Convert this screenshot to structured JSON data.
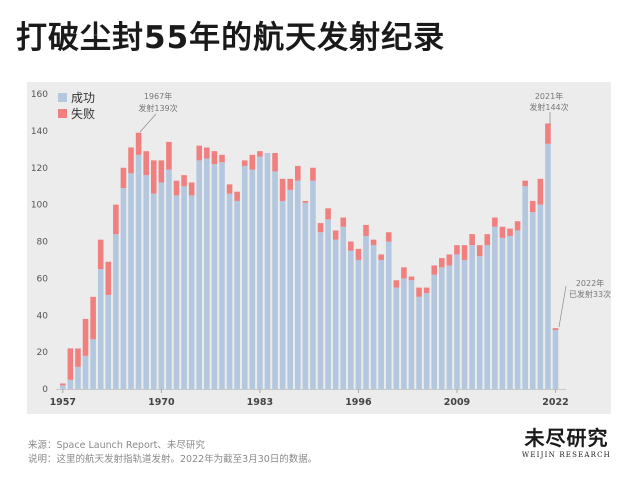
{
  "page": {
    "title": "打破尘封55年的航天发射纪录"
  },
  "footer": {
    "source": "来源：Space Launch Report、未尽研究",
    "note": "说明：这里的航天发射指轨道发射。2022年为截至3月30日的数据。"
  },
  "brand": {
    "name_cn": "未尽研究",
    "name_en": "WEIJIN RESEARCH"
  },
  "colors": {
    "success": "#b3c7df",
    "failure": "#f08080",
    "background": "#ececec"
  },
  "chart_data": {
    "type": "bar",
    "stacked": true,
    "categories": [
      1957,
      1958,
      1959,
      1960,
      1961,
      1962,
      1963,
      1964,
      1965,
      1966,
      1967,
      1968,
      1969,
      1970,
      1971,
      1972,
      1973,
      1974,
      1975,
      1976,
      1977,
      1978,
      1979,
      1980,
      1981,
      1982,
      1983,
      1984,
      1985,
      1986,
      1987,
      1988,
      1989,
      1990,
      1991,
      1992,
      1993,
      1994,
      1995,
      1996,
      1997,
      1998,
      1999,
      2000,
      2001,
      2002,
      2003,
      2004,
      2005,
      2006,
      2007,
      2008,
      2009,
      2010,
      2011,
      2012,
      2013,
      2014,
      2015,
      2016,
      2017,
      2018,
      2019,
      2020,
      2021,
      2022
    ],
    "x_tick_labels": [
      "1957",
      "1970",
      "1983",
      "1996",
      "2009",
      "2022"
    ],
    "series": [
      {
        "name": "成功",
        "color": "#b3c7df",
        "values": [
          2,
          5,
          12,
          18,
          27,
          65,
          51,
          84,
          109,
          117,
          127,
          116,
          106,
          112,
          119,
          105,
          110,
          105,
          124,
          125,
          122,
          123,
          106,
          102,
          121,
          119,
          126,
          128,
          118,
          102,
          108,
          113,
          101,
          113,
          85,
          92,
          81,
          88,
          75,
          70,
          83,
          78,
          70,
          80,
          55,
          60,
          59,
          50,
          52,
          62,
          66,
          67,
          73,
          70,
          78,
          72,
          78,
          88,
          82,
          83,
          86,
          110,
          96,
          100,
          133,
          32
        ]
      },
      {
        "name": "失败",
        "color": "#f08080",
        "values": [
          1,
          17,
          10,
          20,
          23,
          16,
          18,
          16,
          11,
          14,
          12,
          13,
          18,
          12,
          15,
          8,
          6,
          7,
          8,
          6,
          7,
          4,
          5,
          5,
          3,
          8,
          3,
          0,
          10,
          12,
          6,
          8,
          1,
          7,
          5,
          6,
          5,
          5,
          5,
          6,
          6,
          3,
          3,
          5,
          4,
          6,
          2,
          5,
          3,
          5,
          5,
          6,
          5,
          8,
          6,
          6,
          6,
          5,
          6,
          4,
          5,
          3,
          6,
          14,
          11,
          1
        ]
      }
    ],
    "ylim": [
      0,
      160
    ],
    "y_ticks": [
      0,
      20,
      40,
      60,
      80,
      100,
      120,
      140,
      160
    ],
    "legend": "top-left",
    "annotations": [
      {
        "year": 1967,
        "year_label": "1967年",
        "text": "发射139次",
        "value": 139
      },
      {
        "year": 2021,
        "year_label": "2021年",
        "text": "发射144次",
        "value": 144
      },
      {
        "year": 2022,
        "year_label": "2022年",
        "text": "已发射33次",
        "value": 33
      }
    ]
  }
}
